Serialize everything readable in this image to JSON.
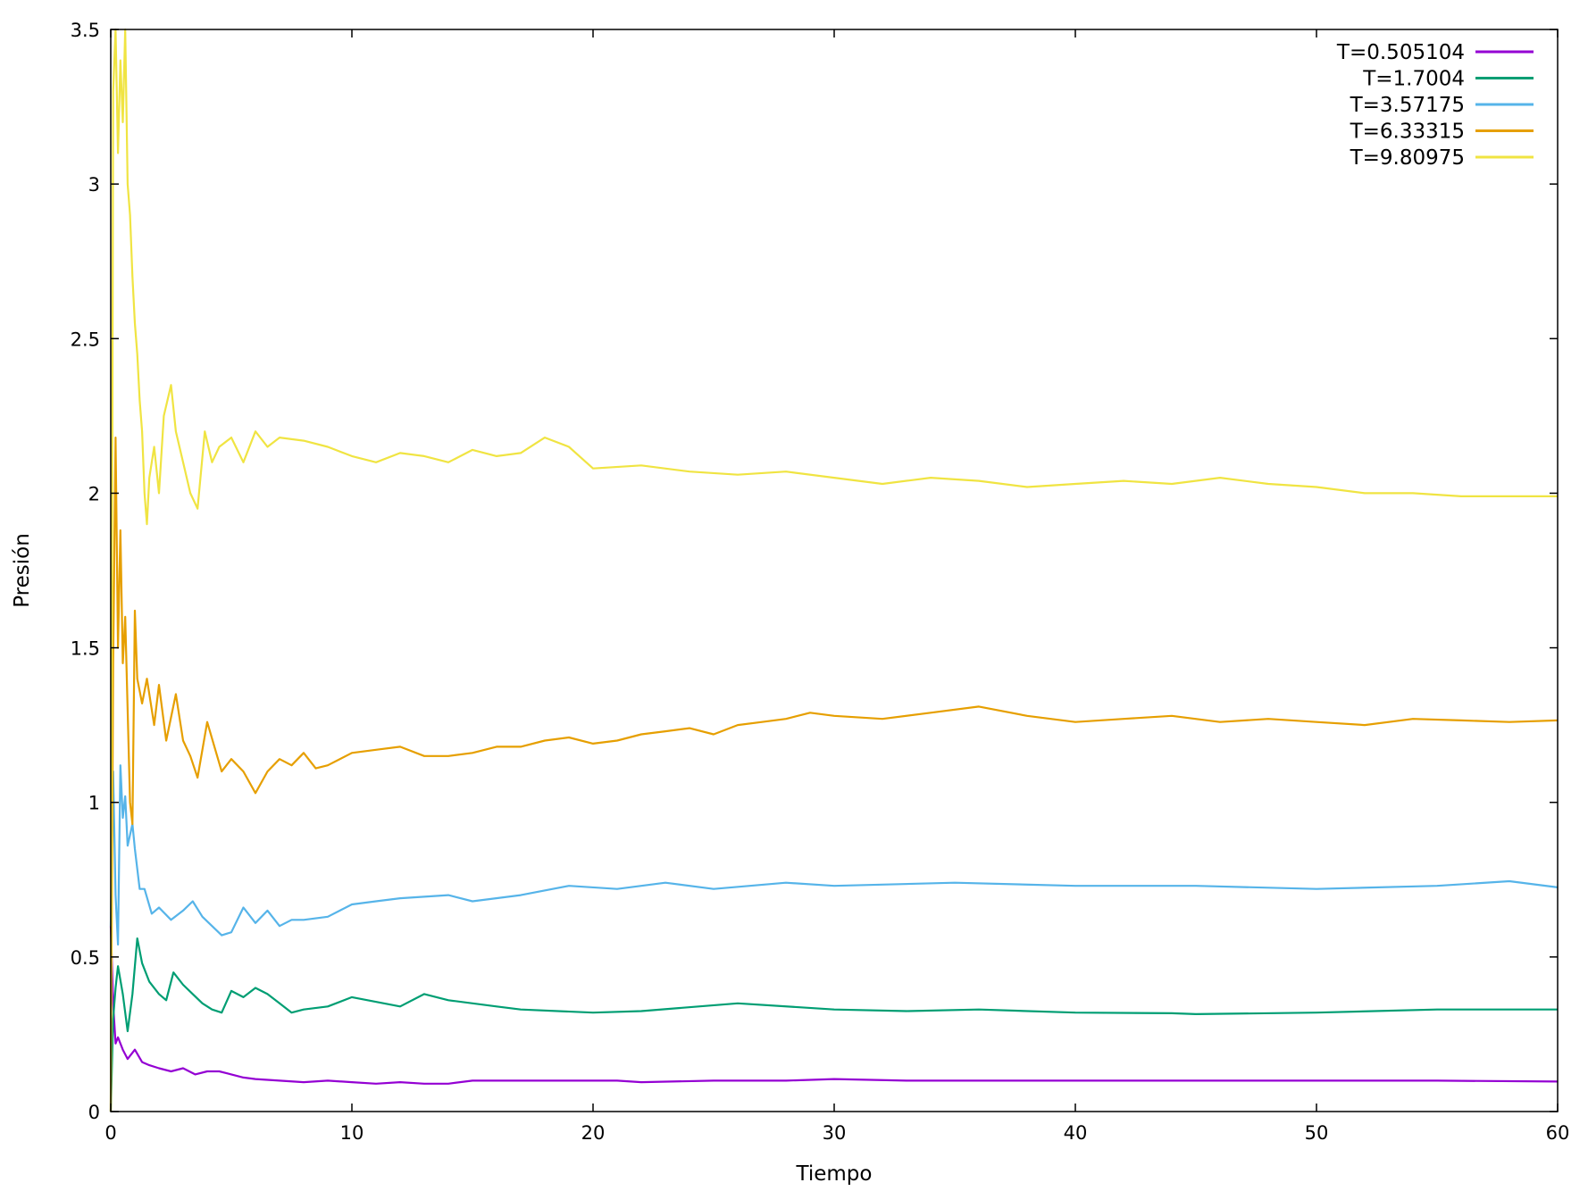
{
  "chart_data": {
    "type": "line",
    "xlabel": "Tiempo",
    "ylabel": "Presión",
    "xlim": [
      0,
      60
    ],
    "ylim": [
      0,
      3.5
    ],
    "xticks": [
      "0",
      "10",
      "20",
      "30",
      "40",
      "50",
      "60"
    ],
    "yticks": [
      "0",
      "0.5",
      "1",
      "1.5",
      "2",
      "2.5",
      "3",
      "3.5"
    ],
    "grid": false,
    "legend_position": "top-right",
    "series": [
      {
        "name": "T=0.505104",
        "color": "#9400d3",
        "x": [
          0,
          0.1,
          0.2,
          0.3,
          0.5,
          0.7,
          1.0,
          1.3,
          1.6,
          2.0,
          2.5,
          3.0,
          3.5,
          4.0,
          4.5,
          5.0,
          5.5,
          6.0,
          7.0,
          8.0,
          9.0,
          10.0,
          11.0,
          12.0,
          13.0,
          14.0,
          15.0,
          17.0,
          19.0,
          21.0,
          22.0,
          25.0,
          28.0,
          30.0,
          33.0,
          35.0,
          40.0,
          45.0,
          50.0,
          55.0,
          60.0
        ],
        "y": [
          0.6,
          0.35,
          0.22,
          0.24,
          0.2,
          0.17,
          0.2,
          0.16,
          0.15,
          0.14,
          0.13,
          0.14,
          0.12,
          0.13,
          0.13,
          0.12,
          0.11,
          0.105,
          0.1,
          0.095,
          0.1,
          0.095,
          0.09,
          0.095,
          0.09,
          0.09,
          0.1,
          0.1,
          0.1,
          0.1,
          0.095,
          0.1,
          0.1,
          0.105,
          0.1,
          0.1,
          0.1,
          0.1,
          0.1,
          0.1,
          0.097
        ]
      },
      {
        "name": "T=1.7004",
        "color": "#009e73",
        "x": [
          0,
          0.1,
          0.2,
          0.3,
          0.5,
          0.7,
          0.9,
          1.1,
          1.3,
          1.6,
          2.0,
          2.3,
          2.6,
          3.0,
          3.4,
          3.8,
          4.2,
          4.6,
          5.0,
          5.5,
          6.0,
          6.5,
          7.0,
          7.5,
          8.0,
          9.0,
          10.0,
          12.0,
          13.0,
          14.0,
          16.0,
          17.0,
          20.0,
          22.0,
          26.0,
          30.0,
          33.0,
          36.0,
          40.0,
          44.0,
          45.0,
          50.0,
          55.0,
          60.0
        ],
        "y": [
          0.0,
          0.3,
          0.4,
          0.47,
          0.38,
          0.26,
          0.38,
          0.56,
          0.48,
          0.42,
          0.38,
          0.36,
          0.45,
          0.41,
          0.38,
          0.35,
          0.33,
          0.32,
          0.39,
          0.37,
          0.4,
          0.38,
          0.35,
          0.32,
          0.33,
          0.34,
          0.37,
          0.34,
          0.38,
          0.36,
          0.34,
          0.33,
          0.32,
          0.325,
          0.35,
          0.33,
          0.325,
          0.33,
          0.32,
          0.318,
          0.315,
          0.32,
          0.33,
          0.33
        ]
      },
      {
        "name": "T=3.57175",
        "color": "#56b4e9",
        "x": [
          0,
          0.1,
          0.2,
          0.3,
          0.4,
          0.5,
          0.6,
          0.7,
          0.9,
          1.0,
          1.2,
          1.4,
          1.7,
          2.0,
          2.5,
          3.0,
          3.4,
          3.8,
          4.2,
          4.6,
          5.0,
          5.5,
          6.0,
          6.5,
          7.0,
          7.5,
          8.0,
          9.0,
          10.0,
          11.0,
          12.0,
          14.0,
          15.0,
          17.0,
          19.0,
          21.0,
          23.0,
          25.0,
          28.0,
          30.0,
          35.0,
          40.0,
          45.0,
          50.0,
          55.0,
          58.0,
          60.0
        ],
        "y": [
          0.6,
          1.1,
          0.7,
          0.54,
          1.12,
          0.95,
          1.02,
          0.86,
          0.93,
          0.85,
          0.72,
          0.72,
          0.64,
          0.66,
          0.62,
          0.65,
          0.68,
          0.63,
          0.6,
          0.57,
          0.58,
          0.66,
          0.61,
          0.65,
          0.6,
          0.62,
          0.62,
          0.63,
          0.67,
          0.68,
          0.69,
          0.7,
          0.68,
          0.7,
          0.73,
          0.72,
          0.74,
          0.72,
          0.74,
          0.73,
          0.74,
          0.73,
          0.73,
          0.72,
          0.73,
          0.745,
          0.725
        ]
      },
      {
        "name": "T=6.33315",
        "color": "#e69f00",
        "x": [
          0,
          0.1,
          0.2,
          0.3,
          0.4,
          0.5,
          0.6,
          0.7,
          0.8,
          0.9,
          1.0,
          1.1,
          1.3,
          1.5,
          1.8,
          2.0,
          2.3,
          2.7,
          3.0,
          3.3,
          3.6,
          4.0,
          4.3,
          4.6,
          5.0,
          5.5,
          6.0,
          6.5,
          7.0,
          7.5,
          8.0,
          8.5,
          9.0,
          10.0,
          11.0,
          12.0,
          13.0,
          14.0,
          15.0,
          16.0,
          17.0,
          18.0,
          19.0,
          20.0,
          21.0,
          22.0,
          23.0,
          24.0,
          25.0,
          26.0,
          27.0,
          28.0,
          29.0,
          30.0,
          32.0,
          34.0,
          36.0,
          38.0,
          40.0,
          42.0,
          44.0,
          46.0,
          48.0,
          50.0,
          52.0,
          54.0,
          56.0,
          58.0,
          60.0
        ],
        "y": [
          0.0,
          1.45,
          2.18,
          1.5,
          1.88,
          1.45,
          1.6,
          1.3,
          1.0,
          0.93,
          1.62,
          1.4,
          1.32,
          1.4,
          1.25,
          1.38,
          1.2,
          1.35,
          1.2,
          1.15,
          1.08,
          1.26,
          1.18,
          1.1,
          1.14,
          1.1,
          1.03,
          1.1,
          1.14,
          1.12,
          1.16,
          1.11,
          1.12,
          1.16,
          1.17,
          1.18,
          1.15,
          1.15,
          1.16,
          1.18,
          1.18,
          1.2,
          1.21,
          1.19,
          1.2,
          1.22,
          1.23,
          1.24,
          1.22,
          1.25,
          1.26,
          1.27,
          1.29,
          1.28,
          1.27,
          1.29,
          1.31,
          1.28,
          1.26,
          1.27,
          1.28,
          1.26,
          1.27,
          1.26,
          1.25,
          1.27,
          1.265,
          1.26,
          1.265
        ]
      },
      {
        "name": "T=9.80975",
        "color": "#f0e442",
        "x": [
          0,
          0.1,
          0.2,
          0.3,
          0.4,
          0.5,
          0.6,
          0.7,
          0.8,
          0.9,
          1.0,
          1.1,
          1.2,
          1.3,
          1.4,
          1.5,
          1.6,
          1.8,
          2.0,
          2.2,
          2.5,
          2.7,
          3.0,
          3.3,
          3.6,
          3.9,
          4.2,
          4.5,
          5.0,
          5.5,
          6.0,
          6.5,
          7.0,
          8.0,
          9.0,
          10.0,
          11.0,
          12.0,
          13.0,
          14.0,
          15.0,
          16.0,
          17.0,
          18.0,
          19.0,
          20.0,
          22.0,
          24.0,
          26.0,
          28.0,
          30.0,
          32.0,
          34.0,
          36.0,
          38.0,
          40.0,
          42.0,
          44.0,
          46.0,
          48.0,
          50.0,
          52.0,
          54.0,
          56.0,
          58.0,
          60.0
        ],
        "y": [
          0.0,
          3.3,
          3.5,
          3.1,
          3.4,
          3.2,
          3.5,
          3.0,
          2.9,
          2.7,
          2.55,
          2.45,
          2.3,
          2.2,
          2.0,
          1.9,
          2.05,
          2.15,
          2.0,
          2.25,
          2.35,
          2.2,
          2.1,
          2.0,
          1.95,
          2.2,
          2.1,
          2.15,
          2.18,
          2.1,
          2.2,
          2.15,
          2.18,
          2.17,
          2.15,
          2.12,
          2.1,
          2.13,
          2.12,
          2.1,
          2.14,
          2.12,
          2.13,
          2.18,
          2.15,
          2.08,
          2.09,
          2.07,
          2.06,
          2.07,
          2.05,
          2.03,
          2.05,
          2.04,
          2.02,
          2.03,
          2.04,
          2.03,
          2.05,
          2.03,
          2.02,
          2.0,
          2.0,
          1.99,
          1.99,
          1.99
        ]
      }
    ]
  }
}
